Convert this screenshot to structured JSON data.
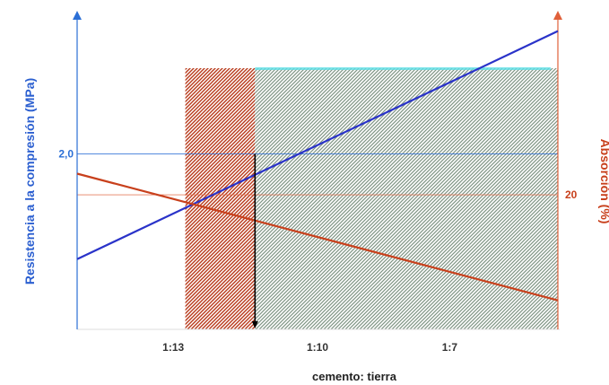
{
  "chart_data": {
    "type": "line",
    "xlabel": "cemento: tierra",
    "ylabel_left": "Resistencia a la compresión (MPa)",
    "ylabel_right": "Absorción (%)",
    "x_ticks": [
      "1:13",
      "1:10",
      "1:7"
    ],
    "y_left_ticks": [
      "2,0"
    ],
    "y_right_ticks": [
      "20"
    ],
    "colors": {
      "resistance": "#2a33c9",
      "absorption": "#c8401c",
      "left_axis": "#2b6fd6",
      "right_axis": "#e0603a",
      "red_band": "#b8391a",
      "green_band": "#7f9484",
      "cyan_edge": "#5fe0e6"
    },
    "series": [
      {
        "key": "resistance",
        "axis": "left",
        "color": "#2a33c9",
        "points": [
          [
            0,
            0.8
          ],
          [
            10,
            3.4
          ]
        ]
      },
      {
        "key": "absorption",
        "axis": "right",
        "color": "#c8401c",
        "points": [
          [
            0,
            22
          ],
          [
            10,
            10
          ]
        ]
      }
    ],
    "x_range": [
      0,
      10
    ],
    "x_tick_values": [
      2,
      5,
      7.75
    ],
    "y_left_range": [
      0,
      3.55
    ],
    "y_left_tick_values": [
      2.0
    ],
    "y_right_range": [
      7.25,
      36.75
    ],
    "y_right_tick_values": [
      20
    ],
    "regions": [
      {
        "key": "red_band",
        "x_from": 2.25,
        "x_to": 3.7,
        "pattern": "hatch-red"
      },
      {
        "key": "green_band",
        "x_from": 3.7,
        "x_to": 10,
        "pattern": "hatch-green"
      }
    ],
    "marker": {
      "x": 3.7,
      "y_left": 2.0
    }
  }
}
